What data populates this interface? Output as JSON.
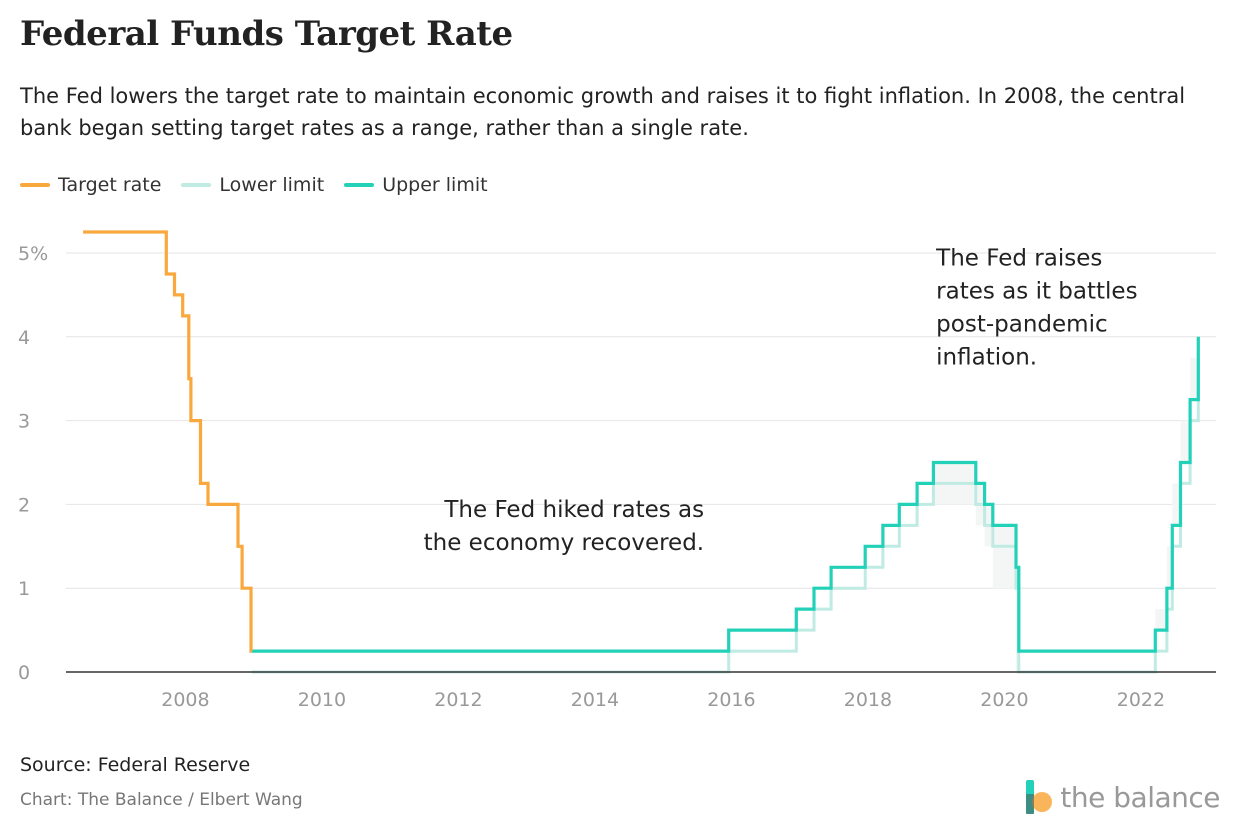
{
  "title": "Federal Funds Target Rate",
  "subtitle": "The Fed lowers the target rate to maintain economic growth and raises it to fight inflation. In 2008, the central bank began setting target rates as a range, rather than a single rate.",
  "colors": {
    "target": "#F9A83E",
    "lower": "#BFEBE3",
    "upper": "#23D1B9",
    "band": "#F4F6F5",
    "grid": "#E4E4E4",
    "axis": "#333333",
    "tick_text": "#999999"
  },
  "footer": {
    "source": "Source: Federal Reserve",
    "credit": "Chart: The Balance / Elbert Wang",
    "brand": "the balance",
    "brand_icon": "the-balance-logo-icon"
  },
  "chart_data": {
    "type": "line",
    "title": "Federal Funds Target Rate",
    "xlabel": "",
    "ylabel": "",
    "xlim": [
      2006.25,
      2023.1
    ],
    "ylim": [
      0,
      5
    ],
    "grid": true,
    "legend_position": "top-left",
    "x_ticks": [
      2008,
      2010,
      2012,
      2014,
      2016,
      2018,
      2020,
      2022
    ],
    "x_tick_labels": [
      "2008",
      "2010",
      "2012",
      "2014",
      "2016",
      "2018",
      "2020",
      "2022"
    ],
    "y_ticks": [
      0,
      1,
      2,
      3,
      4,
      5
    ],
    "y_tick_labels": [
      "0",
      "1",
      "2",
      "3",
      "4",
      "5%"
    ],
    "series": [
      {
        "name": "Target rate",
        "key": "target",
        "step": true,
        "points": [
          [
            2006.5,
            5.25
          ],
          [
            2007.72,
            4.75
          ],
          [
            2007.84,
            4.5
          ],
          [
            2007.96,
            4.25
          ],
          [
            2008.05,
            3.5
          ],
          [
            2008.08,
            3.0
          ],
          [
            2008.22,
            2.25
          ],
          [
            2008.33,
            2.0
          ],
          [
            2008.77,
            1.5
          ],
          [
            2008.83,
            1.0
          ],
          [
            2008.96,
            0.25
          ],
          [
            2008.97,
            0.25
          ]
        ]
      },
      {
        "name": "Lower limit",
        "key": "lower",
        "step": true,
        "points": [
          [
            2008.97,
            0
          ],
          [
            2015.96,
            0.25
          ],
          [
            2016.95,
            0.5
          ],
          [
            2017.21,
            0.75
          ],
          [
            2017.46,
            1.0
          ],
          [
            2017.96,
            1.25
          ],
          [
            2018.22,
            1.5
          ],
          [
            2018.46,
            1.75
          ],
          [
            2018.72,
            2.0
          ],
          [
            2018.96,
            2.25
          ],
          [
            2019.58,
            2.0
          ],
          [
            2019.71,
            1.75
          ],
          [
            2019.83,
            1.5
          ],
          [
            2020.17,
            1.0
          ],
          [
            2020.21,
            0
          ],
          [
            2022.21,
            0.25
          ],
          [
            2022.38,
            0.75
          ],
          [
            2022.46,
            1.5
          ],
          [
            2022.58,
            2.25
          ],
          [
            2022.72,
            3.0
          ],
          [
            2022.84,
            3.75
          ],
          [
            2022.84,
            3.75
          ]
        ]
      },
      {
        "name": "Upper limit",
        "key": "upper",
        "step": true,
        "points": [
          [
            2008.97,
            0.25
          ],
          [
            2015.96,
            0.5
          ],
          [
            2016.95,
            0.75
          ],
          [
            2017.21,
            1.0
          ],
          [
            2017.46,
            1.25
          ],
          [
            2017.96,
            1.5
          ],
          [
            2018.22,
            1.75
          ],
          [
            2018.46,
            2.0
          ],
          [
            2018.72,
            2.25
          ],
          [
            2018.96,
            2.5
          ],
          [
            2019.58,
            2.25
          ],
          [
            2019.71,
            2.0
          ],
          [
            2019.83,
            1.75
          ],
          [
            2020.17,
            1.25
          ],
          [
            2020.21,
            0.25
          ],
          [
            2022.21,
            0.5
          ],
          [
            2022.38,
            1.0
          ],
          [
            2022.46,
            1.75
          ],
          [
            2022.58,
            2.5
          ],
          [
            2022.72,
            3.25
          ],
          [
            2022.84,
            4.0
          ],
          [
            2022.84,
            4.0
          ]
        ]
      }
    ],
    "annotations": [
      {
        "lines": [
          "The Fed hiked rates as",
          "the economy recovered."
        ],
        "x": 2015.6,
        "y": 1.85,
        "align": "end"
      },
      {
        "lines": [
          "The Fed raises",
          "rates as it battles",
          "post-pandemic",
          "inflation."
        ],
        "x": 2019.0,
        "y": 4.85,
        "align": "start"
      }
    ]
  }
}
